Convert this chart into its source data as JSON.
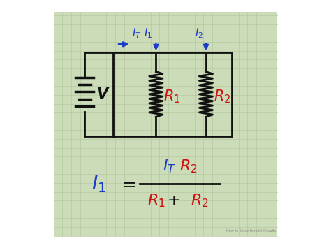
{
  "bg_color": "#ccdcb8",
  "grid_color": "#b5c8a0",
  "outer_bg": "#ffffff",
  "circuit_color": "#111111",
  "blue_color": "#1a3acc",
  "red_color": "#cc1111",
  "fig_width": 4.74,
  "fig_height": 3.55,
  "dpi": 100
}
